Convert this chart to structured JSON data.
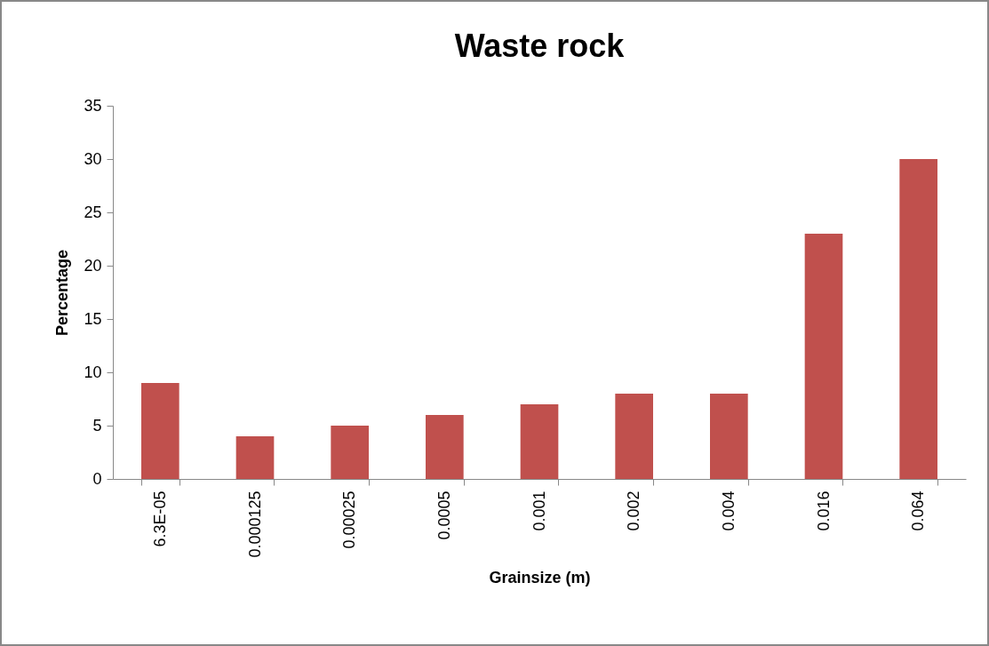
{
  "chart_data": {
    "type": "bar",
    "title": "Waste rock",
    "xlabel": "Grainsize (m)",
    "ylabel": "Percentage",
    "categories": [
      "6.3E-05",
      "0.000125",
      "0.00025",
      "0.0005",
      "0.001",
      "0.002",
      "0.004",
      "0.016",
      "0.064"
    ],
    "values": [
      9,
      4,
      5,
      6,
      7,
      8,
      8,
      23,
      30
    ],
    "color": "#c0504d",
    "ylim": [
      0,
      35
    ],
    "yticks": [
      0,
      5,
      10,
      15,
      20,
      25,
      30,
      35
    ],
    "grid": false,
    "legend": false
  }
}
